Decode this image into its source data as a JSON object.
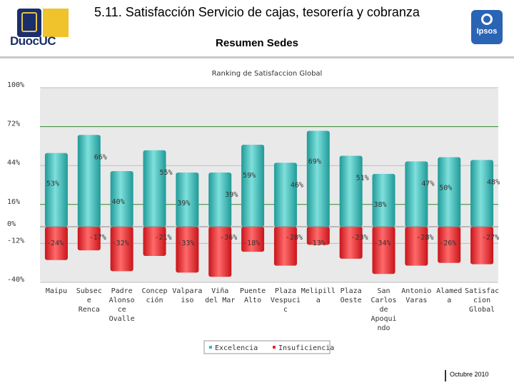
{
  "header": {
    "title": "5.11. Satisfacción Servicio de cajas, tesorería y cobranza",
    "subtitle": "Resumen Sedes",
    "logo_left": "DuocUC",
    "logo_right": "Ipsos"
  },
  "footer": {
    "date": "Octubre 2010"
  },
  "colors": {
    "excelencia": "#3ab8b6",
    "insuficiencia": "#e8262c",
    "plot_bg": "#e9e9e9"
  },
  "chart_data": {
    "type": "bar",
    "title": "Ranking de Satisfaccion Global",
    "xlabel": "",
    "ylabel": "",
    "ylim": [
      -40,
      100
    ],
    "yticks": [
      100,
      72,
      44,
      16,
      0,
      -12,
      -40
    ],
    "ytick_labels": [
      "100%",
      "72%",
      "44%",
      "16%",
      "0%",
      "-12%",
      "-40%"
    ],
    "grid": true,
    "legend_position": "bottom",
    "categories": [
      [
        "Maipu"
      ],
      [
        "Subsec",
        "e",
        "Renca"
      ],
      [
        "Padre",
        "Alonso",
        "ce",
        "Ovalle"
      ],
      [
        "Concep",
        "ción"
      ],
      [
        "Valpara",
        "iso"
      ],
      [
        "Viña",
        "del Mar"
      ],
      [
        "Puente",
        "Alto"
      ],
      [
        "Plaza",
        "Vespuci",
        "c"
      ],
      [
        "Melipill",
        "a"
      ],
      [
        "Plaza",
        "Oeste"
      ],
      [
        "San",
        "Carlos",
        "de",
        "Apoqui",
        "ndo"
      ],
      [
        "Antonio",
        "Varas"
      ],
      [
        "Alamed",
        "a"
      ],
      [
        "Satisfac",
        "cion",
        "Global"
      ]
    ],
    "series": [
      {
        "name": "Excelencia",
        "values": [
          53,
          66,
          40,
          55,
          39,
          39,
          59,
          46,
          69,
          51,
          38,
          47,
          50,
          48
        ],
        "labels": [
          "53%",
          "66%",
          "40%",
          "55%",
          "39%",
          "39%",
          "59%",
          "46%",
          "69%",
          "51%",
          "38%",
          "47%",
          "50%",
          "48%"
        ]
      },
      {
        "name": "Insuficiencia",
        "values": [
          -24,
          -17,
          -32,
          -21,
          -33,
          -36,
          -18,
          -28,
          -13,
          -23,
          -34,
          -28,
          -26,
          -27
        ],
        "labels": [
          "-24%",
          "-17%",
          "-32%",
          "-21%",
          "-33%",
          "-36%",
          "-18%",
          "-28%",
          "-13%",
          "-23%",
          "-34%",
          "-28%",
          "-26%",
          "-27%"
        ]
      }
    ]
  }
}
